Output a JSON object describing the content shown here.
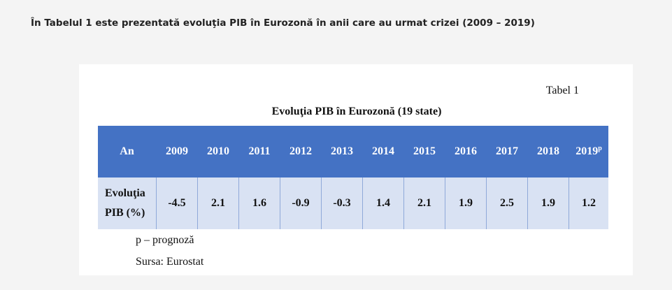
{
  "intro_text": "În Tabelul 1 este prezentată evoluţia PIB în Eurozonă în anii care au urmat crizei (2009 – 2019)",
  "table": {
    "caption": "Tabel 1",
    "title": "Evoluţia PIB în Eurozonă (19 state)",
    "header_label": "An",
    "years": [
      "2009",
      "2010",
      "2011",
      "2012",
      "2013",
      "2014",
      "2015",
      "2016",
      "2017",
      "2018",
      "2019"
    ],
    "forecast_marker": "p",
    "row_label_line1": "Evoluţia",
    "row_label_line2": "PIB (%)",
    "values": [
      "-4.5",
      "2.1",
      "1.6",
      "-0.9",
      "-0.3",
      "1.4",
      "2.1",
      "1.9",
      "2.5",
      "1.9",
      "1.2"
    ]
  },
  "notes": {
    "legend": "p – prognoză",
    "source": "Sursa: Eurostat"
  },
  "colors": {
    "header_bg": "#4472c4",
    "row_bg": "#d9e2f3"
  }
}
